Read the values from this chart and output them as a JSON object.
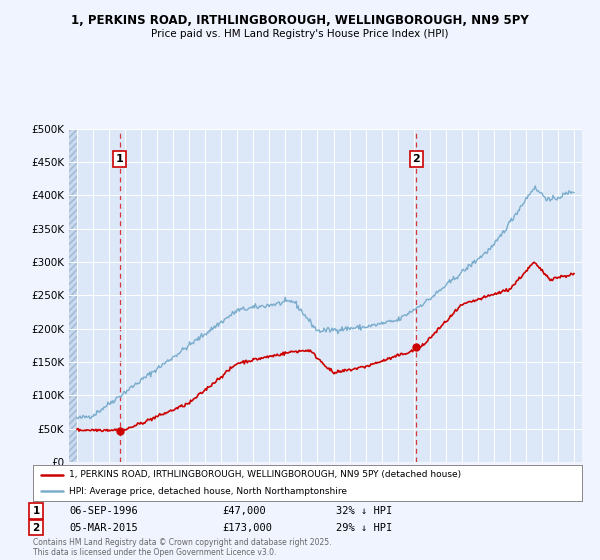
{
  "title": "1, PERKINS ROAD, IRTHLINGBOROUGH, WELLINGBOROUGH, NN9 5PY",
  "subtitle": "Price paid vs. HM Land Registry's House Price Index (HPI)",
  "bg_color": "#f0f4ff",
  "plot_bg_color": "#dce8f8",
  "hatch_color": "#c8d8ee",
  "grid_color": "#ffffff",
  "red_color": "#cc0000",
  "blue_color": "#7aaccc",
  "marker1_x": 1996.67,
  "marker1_y": 47000,
  "marker2_x": 2015.17,
  "marker2_y": 173000,
  "legend_line1": "1, PERKINS ROAD, IRTHLINGBOROUGH, WELLINGBOROUGH, NN9 5PY (detached house)",
  "legend_line2": "HPI: Average price, detached house, North Northamptonshire",
  "note1_num": "1",
  "note1_date": "06-SEP-1996",
  "note1_price": "£47,000",
  "note1_hpi": "32% ↓ HPI",
  "note2_num": "2",
  "note2_date": "05-MAR-2015",
  "note2_price": "£173,000",
  "note2_hpi": "29% ↓ HPI",
  "copyright": "Contains HM Land Registry data © Crown copyright and database right 2025.\nThis data is licensed under the Open Government Licence v3.0.",
  "ylim": [
    0,
    500000
  ],
  "yticks": [
    0,
    50000,
    100000,
    150000,
    200000,
    250000,
    300000,
    350000,
    400000,
    450000,
    500000
  ],
  "xmin": 1993.5,
  "xmax": 2025.5,
  "data_start": 1994.0
}
